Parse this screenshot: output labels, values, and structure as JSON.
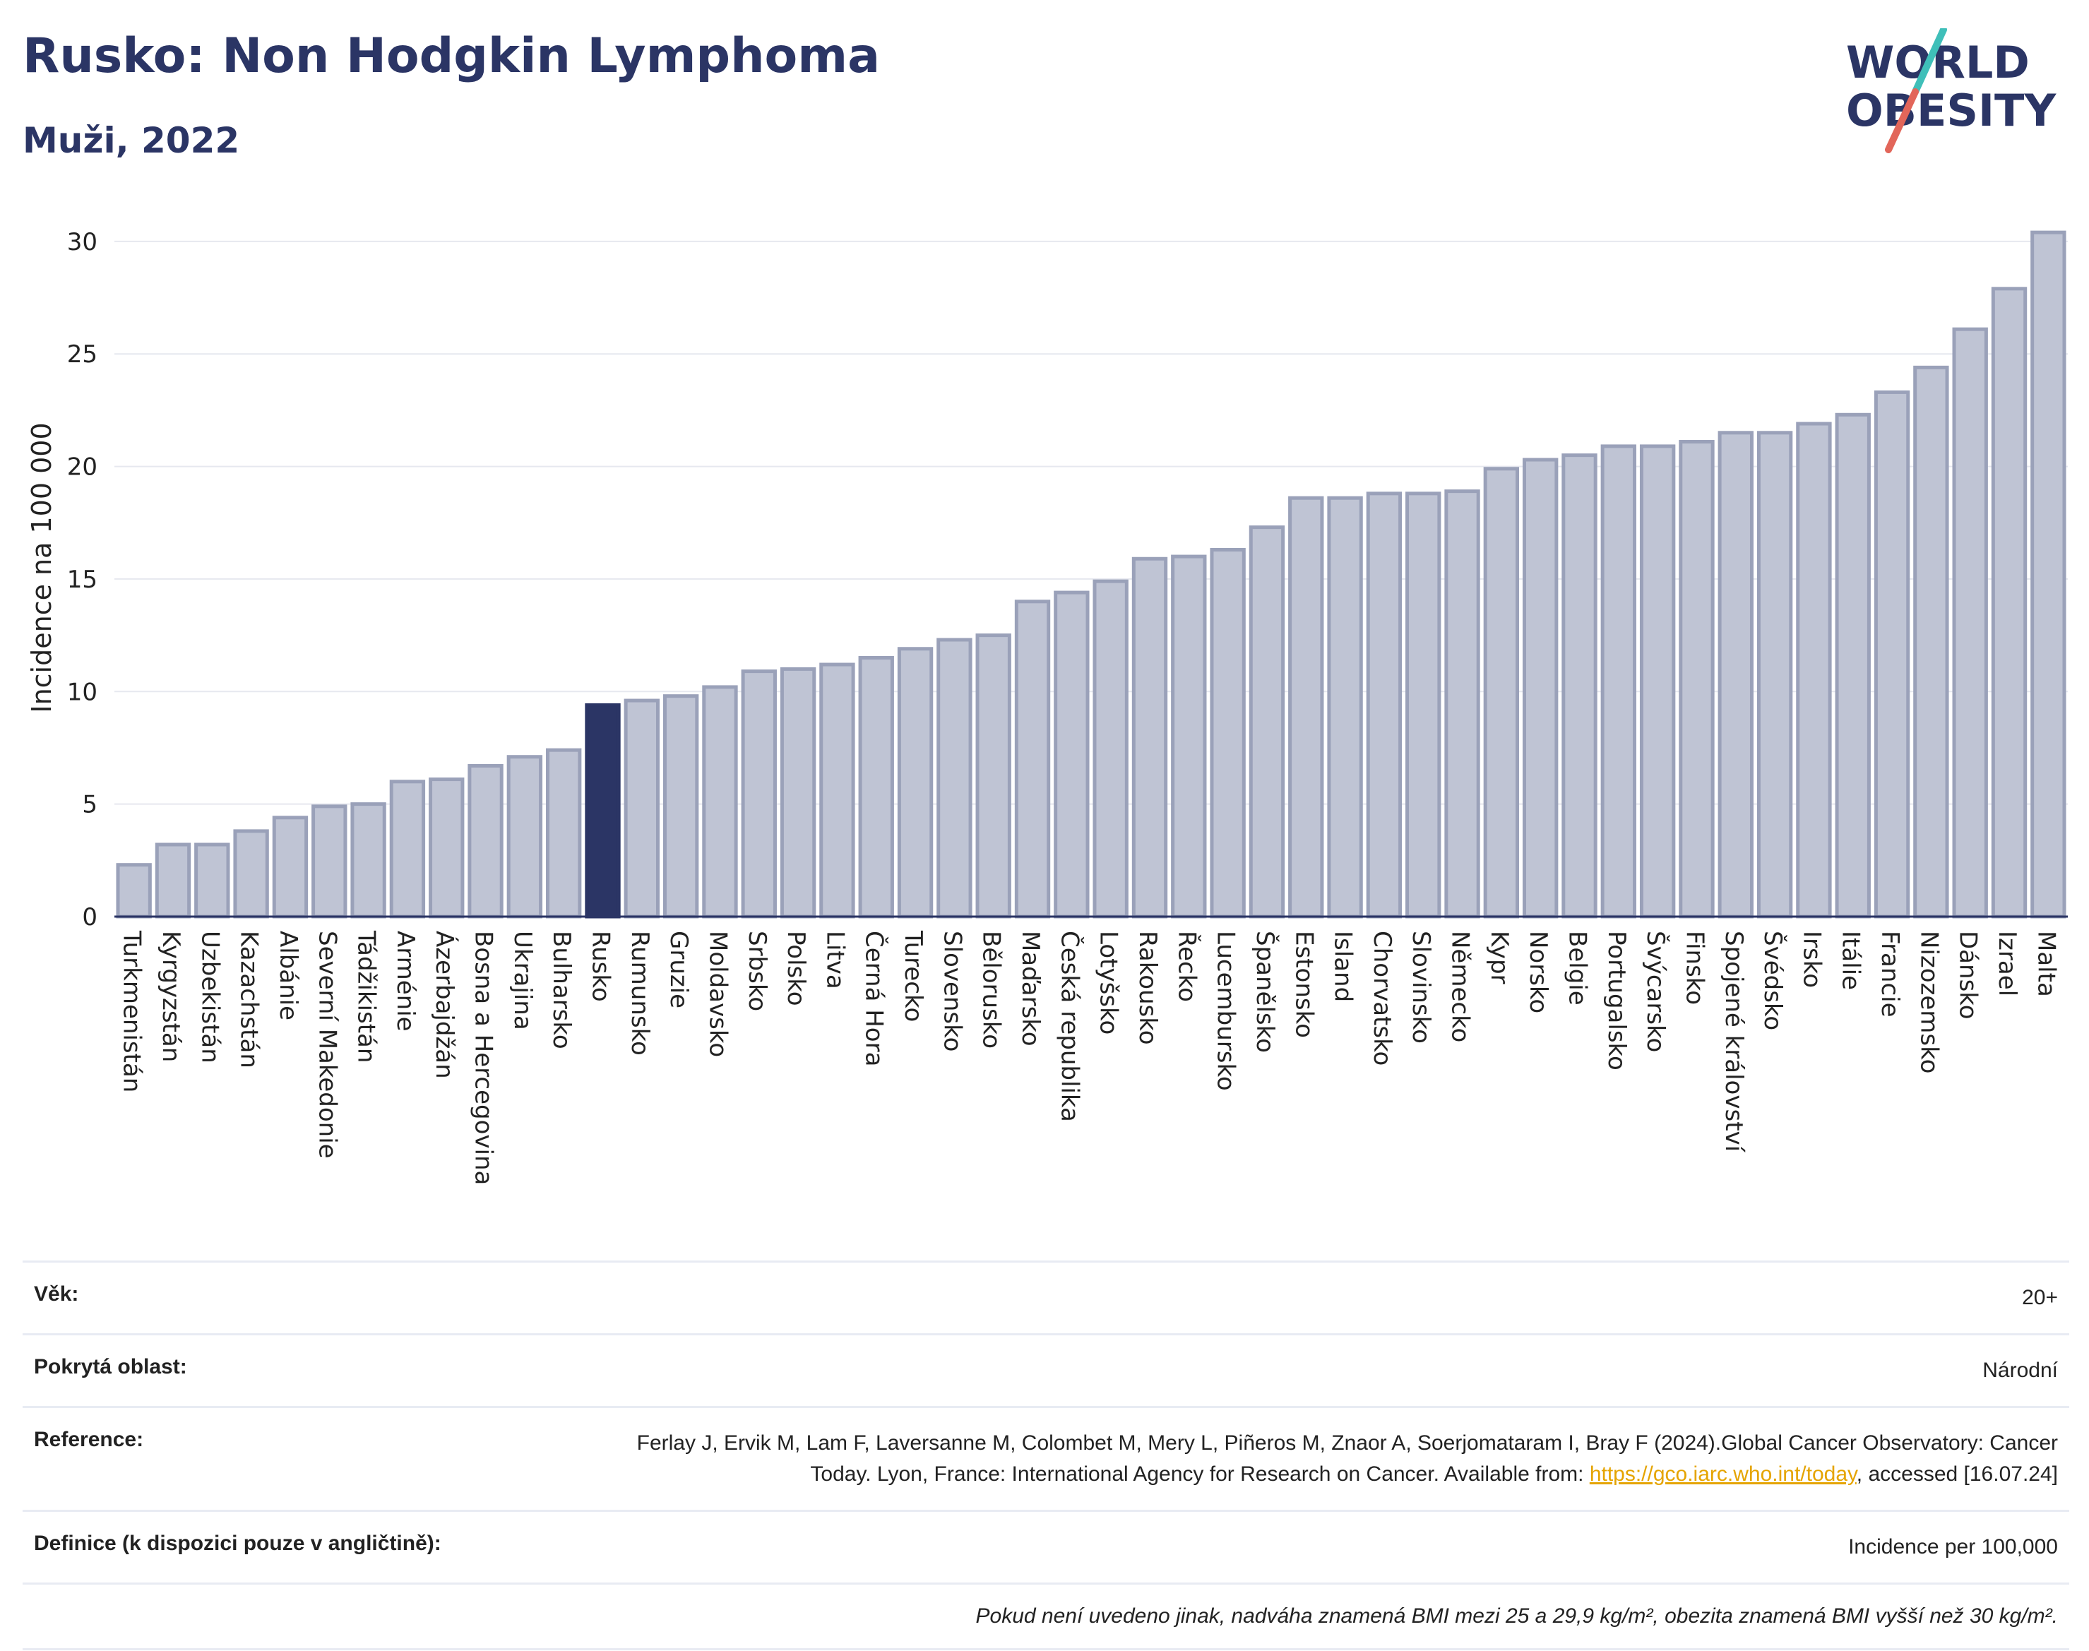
{
  "header": {
    "title": "Rusko: Non Hodgkin Lymphoma",
    "subtitle": "Muži, 2022",
    "logo_line1": "WORLD",
    "logo_line2": "OBESITY"
  },
  "colors": {
    "title": "#2b3565",
    "bar": "#bfc4d4",
    "bar_border": "#9aa1b9",
    "highlight": "#2b3565",
    "grid": "#e6e8ef",
    "link": "#e5a400",
    "logo_teal": "#3fbfb9",
    "logo_red": "#e2665a"
  },
  "chart_data": {
    "type": "bar",
    "ylabel": "Incidence na 100 000",
    "ylim": [
      0,
      31
    ],
    "yticks": [
      0,
      5,
      10,
      15,
      20,
      25,
      30
    ],
    "highlight": "Rusko",
    "categories": [
      "Turkmenistán",
      "Kyrgyzstán",
      "Uzbekistán",
      "Kazachstán",
      "Albánie",
      "Severní Makedonie",
      "Tádžikistán",
      "Arménie",
      "Ázerbajdžán",
      "Bosna a Hercegovina",
      "Ukrajina",
      "Bulharsko",
      "Rusko",
      "Rumunsko",
      "Gruzie",
      "Moldavsko",
      "Srbsko",
      "Polsko",
      "Litva",
      "Černá Hora",
      "Turecko",
      "Slovensko",
      "Bělorusko",
      "Maďarsko",
      "Česká republika",
      "Lotyšsko",
      "Rakousko",
      "Řecko",
      "Lucembursko",
      "Španělsko",
      "Estonsko",
      "Island",
      "Chorvatsko",
      "Slovinsko",
      "Německo",
      "Kypr",
      "Norsko",
      "Belgie",
      "Portugalsko",
      "Švýcarsko",
      "Finsko",
      "Spojené království",
      "Švédsko",
      "Irsko",
      "Itálie",
      "Francie",
      "Nizozemsko",
      "Dánsko",
      "Izrael",
      "Malta"
    ],
    "values": [
      2.3,
      3.2,
      3.2,
      3.8,
      4.4,
      4.9,
      5.0,
      6.0,
      6.1,
      6.7,
      7.1,
      7.4,
      9.4,
      9.6,
      9.8,
      10.2,
      10.9,
      11.0,
      11.2,
      11.5,
      11.9,
      12.3,
      12.5,
      14.0,
      14.4,
      14.9,
      15.9,
      16.0,
      16.3,
      17.3,
      18.6,
      18.6,
      18.8,
      18.8,
      18.9,
      19.9,
      20.3,
      20.5,
      20.9,
      20.9,
      21.1,
      21.5,
      21.5,
      21.9,
      22.3,
      23.3,
      24.4,
      26.1,
      27.9,
      30.4
    ]
  },
  "info": {
    "age_label": "Věk:",
    "age_value": "20+",
    "area_label": "Pokrytá oblast:",
    "area_value": "Národní",
    "ref_label": "Reference:",
    "ref_text": "Ferlay J, Ervik M, Lam F, Laversanne M, Colombet M, Mery L, Piñeros M, Znaor A, Soerjomataram I, Bray F (2024).Global Cancer Observatory: Cancer Today. Lyon, France: International Agency for Research on Cancer. Available from: ",
    "ref_link": "https://gco.iarc.who.int/today",
    "ref_suffix": ", accessed [16.07.24]",
    "def_label": "Definice (k dispozici pouze v angličtině):",
    "def_value": "Incidence per 100,000",
    "note": "Pokud není uvedeno jinak, nadváha znamená BMI mezi 25 a 29,9 kg/m², obezita znamená BMI vyšší než 30 kg/m²."
  }
}
